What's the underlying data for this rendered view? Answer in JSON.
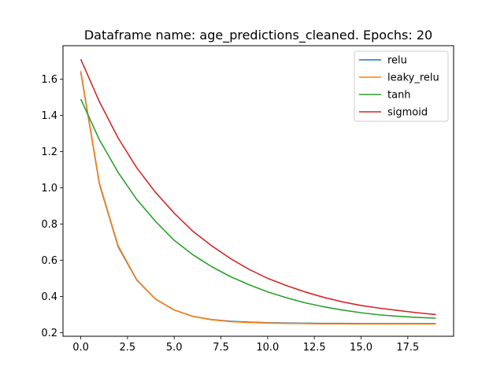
{
  "chart_data": {
    "type": "line",
    "title": "Dataframe name: age_predictions_cleaned. Epochs: 20",
    "xlabel": "",
    "ylabel": "",
    "xlim": [
      -0.95,
      19.95
    ],
    "ylim": [
      0.18,
      1.785
    ],
    "grid": false,
    "legend_position": "top-right",
    "x": [
      0,
      1,
      2,
      3,
      4,
      5,
      6,
      7,
      8,
      9,
      10,
      11,
      12,
      13,
      14,
      15,
      16,
      17,
      18,
      19
    ],
    "xticks": [
      0,
      2.5,
      5,
      7.5,
      10,
      12.5,
      15,
      17.5
    ],
    "xtick_labels": [
      "0.0",
      "2.5",
      "5.0",
      "7.5",
      "10.0",
      "12.5",
      "15.0",
      "17.5"
    ],
    "yticks": [
      0.2,
      0.4,
      0.6,
      0.8,
      1.0,
      1.2,
      1.4,
      1.6
    ],
    "ytick_labels": [
      "0.2",
      "0.4",
      "0.6",
      "0.8",
      "1.0",
      "1.2",
      "1.4",
      "1.6"
    ],
    "series": [
      {
        "name": "relu",
        "color": "#1f77b4",
        "values": [
          1.64,
          1.02,
          0.675,
          0.49,
          0.385,
          0.325,
          0.29,
          0.272,
          0.263,
          0.258,
          0.255,
          0.253,
          0.252,
          0.251,
          0.251,
          0.25,
          0.25,
          0.25,
          0.25,
          0.25
        ]
      },
      {
        "name": "leaky_relu",
        "color": "#ff7f0e",
        "values": [
          1.645,
          1.025,
          0.68,
          0.492,
          0.386,
          0.325,
          0.29,
          0.271,
          0.261,
          0.256,
          0.253,
          0.251,
          0.25,
          0.249,
          0.249,
          0.248,
          0.248,
          0.248,
          0.248,
          0.248
        ]
      },
      {
        "name": "tanh",
        "color": "#2ca02c",
        "values": [
          1.49,
          1.265,
          1.085,
          0.935,
          0.815,
          0.71,
          0.63,
          0.565,
          0.51,
          0.465,
          0.425,
          0.393,
          0.365,
          0.343,
          0.325,
          0.31,
          0.298,
          0.29,
          0.284,
          0.28
        ]
      },
      {
        "name": "sigmoid",
        "color": "#d62728",
        "values": [
          1.71,
          1.475,
          1.275,
          1.11,
          0.975,
          0.86,
          0.76,
          0.68,
          0.61,
          0.55,
          0.5,
          0.46,
          0.425,
          0.395,
          0.37,
          0.35,
          0.335,
          0.322,
          0.31,
          0.3
        ]
      }
    ]
  }
}
